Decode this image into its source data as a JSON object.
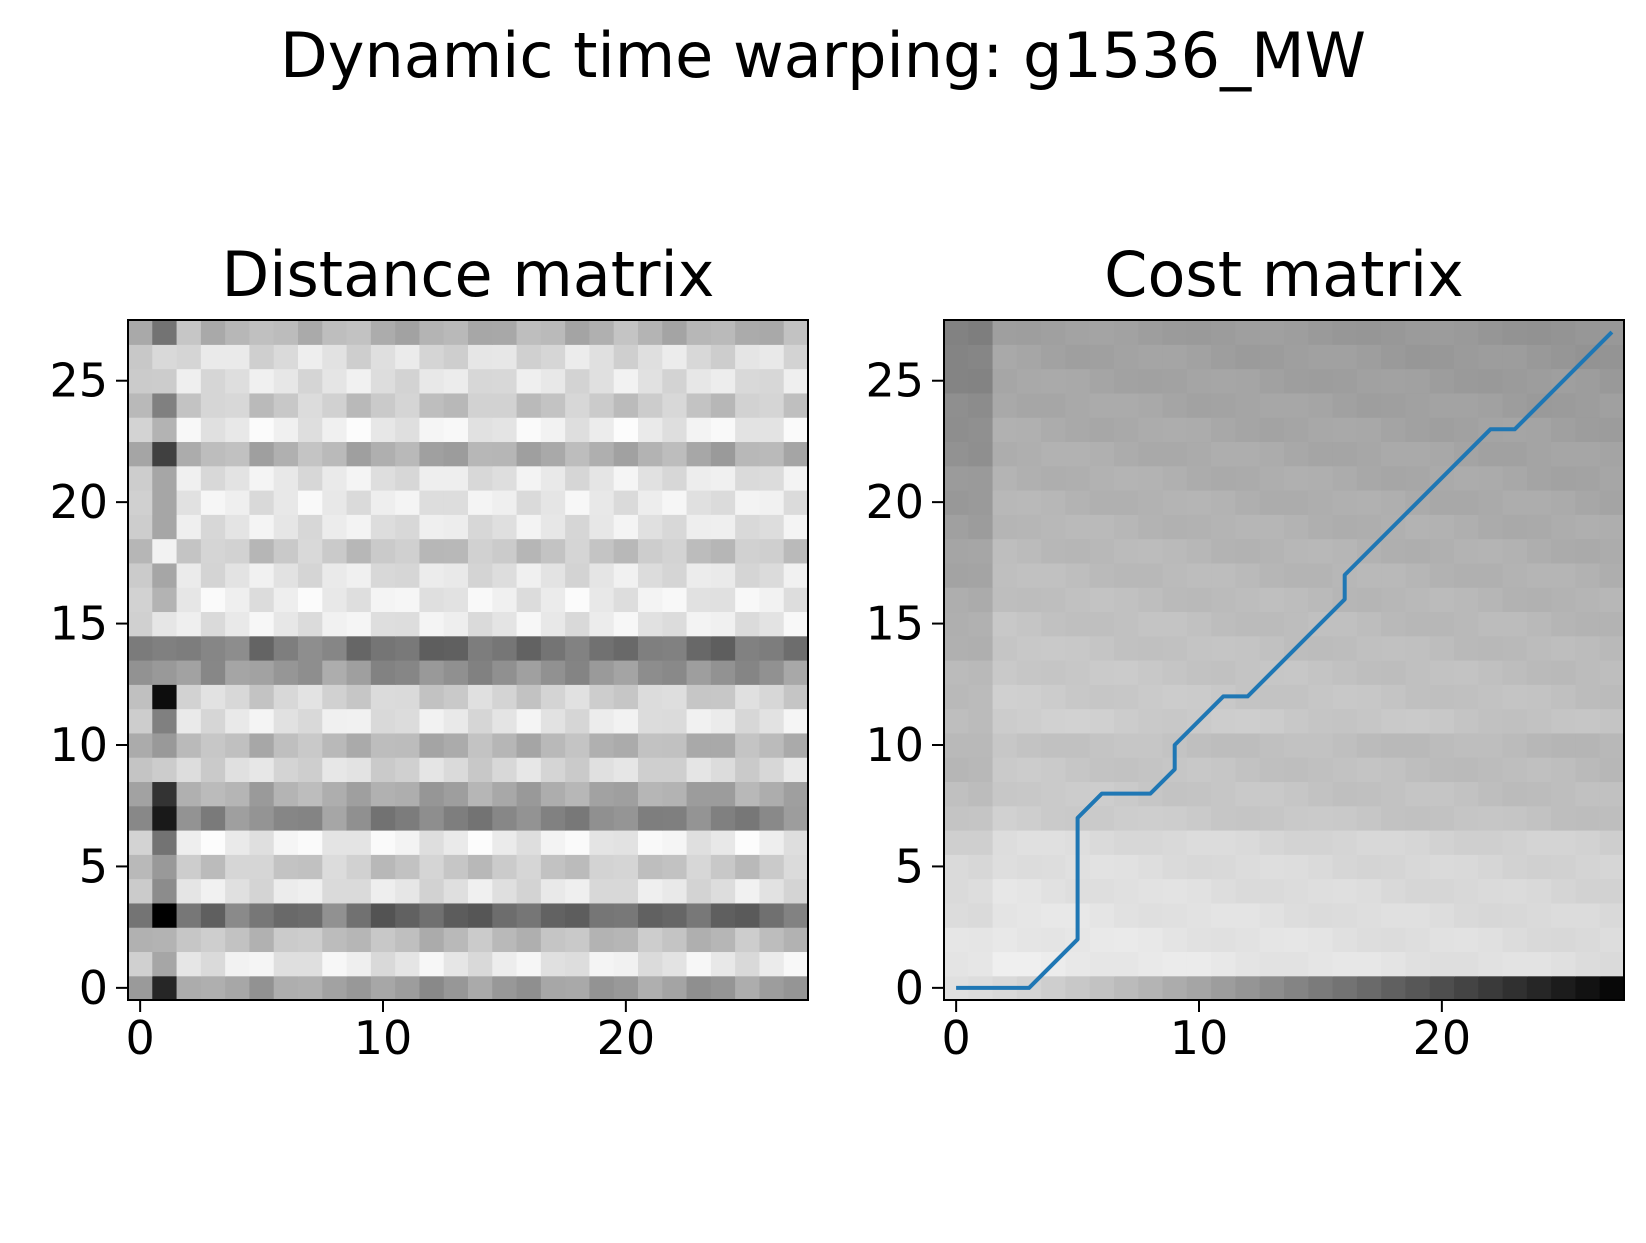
{
  "figure": {
    "title": "Dynamic time warping: g1536_MW"
  },
  "chart_data": [
    {
      "type": "heatmap",
      "title": "Distance matrix",
      "colormap": "gray_r",
      "grid": false,
      "n_cols": 28,
      "n_rows": 28,
      "xlim": [
        -0.5,
        27.5
      ],
      "ylim": [
        -0.5,
        27.5
      ],
      "xticks": [
        0,
        10,
        20
      ],
      "yticks": [
        0,
        5,
        10,
        15,
        20,
        25
      ],
      "row_profile": [
        0.55,
        0.08,
        0.35,
        0.88,
        0.12,
        0.28,
        0.05,
        0.7,
        0.48,
        0.18,
        0.4,
        0.1,
        0.22,
        0.62,
        0.82,
        0.08,
        0.06,
        0.12,
        0.3,
        0.1,
        0.08,
        0.1,
        0.45,
        0.05,
        0.28,
        0.12,
        0.15,
        0.42
      ],
      "col_profile": [
        0.3,
        0.65,
        0.55,
        0.6,
        0.5,
        0.62,
        0.58,
        0.56,
        0.5,
        0.62,
        0.66,
        0.64,
        0.66,
        0.68,
        0.64,
        0.62,
        0.63,
        0.62,
        0.62,
        0.61,
        0.6,
        0.6,
        0.61,
        0.62,
        0.68,
        0.62,
        0.6,
        0.58
      ],
      "special_col1": [
        0.85,
        0.35,
        0.3,
        1.0,
        0.45,
        0.4,
        0.55,
        0.9,
        0.8,
        0.2,
        0.4,
        0.5,
        0.95,
        0.4,
        0.5,
        0.1,
        0.3,
        0.35,
        0.05,
        0.35,
        0.35,
        0.35,
        0.75,
        0.3,
        0.5,
        0.2,
        0.15,
        0.55
      ]
    },
    {
      "type": "heatmap",
      "title": "Cost matrix",
      "colormap": "gray_r",
      "grid": false,
      "n_cols": 28,
      "n_rows": 28,
      "xlim": [
        -0.5,
        27.5
      ],
      "ylim": [
        -0.5,
        27.5
      ],
      "xticks": [
        0,
        10,
        20
      ],
      "yticks": [
        0,
        5,
        10,
        15,
        20,
        25
      ],
      "warping_path": {
        "color": "#1f77b4",
        "x": [
          0,
          3,
          5,
          5,
          6,
          8,
          9,
          9,
          11,
          12,
          16,
          16,
          22,
          23,
          27
        ],
        "y": [
          0,
          0,
          2,
          7,
          8,
          8,
          9,
          10,
          12,
          12,
          16,
          17,
          23,
          23,
          27
        ]
      }
    }
  ]
}
